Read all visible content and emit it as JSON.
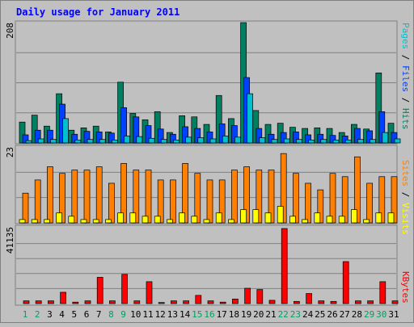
{
  "chart_data": {
    "type": "bar",
    "title": "Daily usage for January 2011",
    "categories": [
      "1",
      "2",
      "3",
      "4",
      "5",
      "6",
      "7",
      "8",
      "9",
      "10",
      "11",
      "12",
      "13",
      "14",
      "15",
      "16",
      "17",
      "18",
      "19",
      "20",
      "21",
      "22",
      "23",
      "24",
      "25",
      "26",
      "27",
      "28",
      "29",
      "30",
      "31"
    ],
    "weekend_days": [
      1,
      2,
      8,
      9,
      15,
      16,
      22,
      23,
      29,
      30
    ],
    "grid": true,
    "panels": [
      {
        "id": "top",
        "axis_max_label": "208",
        "ylim": [
          0,
          208
        ],
        "right_legend": [
          {
            "text": "Pages",
            "color": "#00c0d0"
          },
          {
            "text": " / ",
            "color": "#000000"
          },
          {
            "text": "Files",
            "color": "#0040ff"
          },
          {
            "text": " / ",
            "color": "#000000"
          },
          {
            "text": "Hits",
            "color": "#008060"
          }
        ],
        "series": [
          {
            "name": "Hits",
            "color": "#008060",
            "values": [
              36,
              48,
              29,
              85,
              22,
              26,
              29,
              19,
              105,
              51,
              40,
              54,
              18,
              47,
              45,
              32,
              82,
              42,
              208,
              56,
              32,
              34,
              27,
              25,
              26,
              25,
              18,
              32,
              24,
              121,
              34
            ]
          },
          {
            "name": "Files",
            "color": "#0040ff",
            "values": [
              14,
              22,
              22,
              67,
              15,
              20,
              19,
              17,
              61,
              45,
              30,
              24,
              15,
              28,
              25,
              19,
              33,
              30,
              113,
              25,
              15,
              18,
              19,
              14,
              15,
              13,
              12,
              25,
              21,
              54,
              18
            ]
          },
          {
            "name": "Pages",
            "color": "#00c0d0",
            "values": [
              4,
              7,
              6,
              42,
              5,
              6,
              6,
              5,
              12,
              11,
              8,
              6,
              5,
              10,
              9,
              7,
              12,
              10,
              85,
              9,
              6,
              7,
              6,
              5,
              6,
              5,
              5,
              6,
              6,
              18,
              7
            ]
          }
        ]
      },
      {
        "id": "mid",
        "axis_max_label": "23",
        "ylim": [
          0,
          23
        ],
        "right_legend": [
          {
            "text": "Sites",
            "color": "#ff8000"
          },
          {
            "text": " / ",
            "color": "#000000"
          },
          {
            "text": "Visits",
            "color": "#ffff00"
          }
        ],
        "series": [
          {
            "name": "Sites",
            "color": "#ff8000",
            "values": [
              9,
              13,
              17,
              15,
              16,
              16,
              17,
              12,
              18,
              16,
              16,
              13,
              13,
              18,
              15,
              13,
              13,
              16,
              17,
              16,
              16,
              21,
              15,
              12,
              10,
              15,
              14,
              20,
              12,
              14,
              14
            ]
          },
          {
            "name": "Visits",
            "color": "#ffff00",
            "values": [
              1,
              1,
              1,
              3,
              2,
              1,
              1,
              1,
              3,
              3,
              2,
              2,
              1,
              3,
              2,
              1,
              3,
              1,
              4,
              4,
              3,
              5,
              2,
              1,
              3,
              2,
              2,
              4,
              1,
              3,
              3
            ]
          }
        ]
      },
      {
        "id": "bottom",
        "axis_max_label": "41135",
        "ylim": [
          0,
          41135
        ],
        "right_legend": [
          {
            "text": "KBytes",
            "color": "#ff0000"
          }
        ],
        "series": [
          {
            "name": "KBytes",
            "color": "#ff0000",
            "values": [
              1500,
              1500,
              1500,
              6200,
              800,
              1500,
              14400,
              1500,
              16000,
              1500,
              12000,
              600,
              1500,
              1500,
              4500,
              1500,
              800,
              2500,
              8400,
              7700,
              1800,
              41135,
              1200,
              5500,
              1500,
              1200,
              23000,
              1500,
              1500,
              12000,
              1500
            ]
          }
        ]
      }
    ]
  }
}
